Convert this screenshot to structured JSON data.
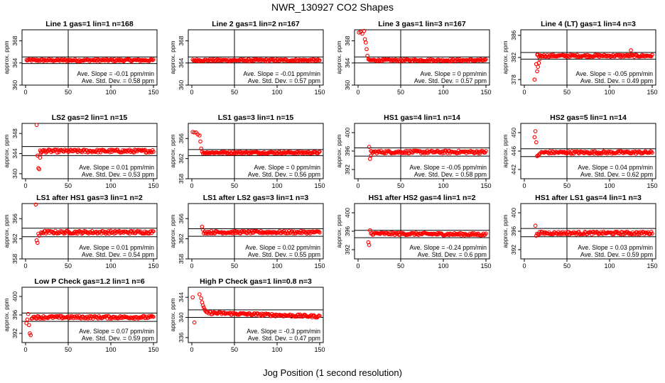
{
  "title": "NWR_130927  CO2 Shapes",
  "xlabel": "Jog Position (1 second resolution)",
  "chart_data": [
    {
      "type": "scatter",
      "title": "Line 1 gas=1 lin=1 n=168",
      "ylabel": "approx. ppm",
      "xlim": [
        0,
        150
      ],
      "ylim": [
        360,
        370
      ],
      "yticks": [
        360,
        364,
        368
      ],
      "xticks": [
        0,
        50,
        100,
        150
      ],
      "hlines": [
        363.9,
        365.1
      ],
      "vline": 50,
      "slope": "Ave. Slope = -0.01  ppm/min",
      "stddev": "Ave. Std. Dev. = 0.58  ppm",
      "points": [
        [
          1,
          364.5
        ],
        [
          150,
          364.5
        ]
      ],
      "spikes": []
    },
    {
      "type": "scatter",
      "title": "Line 2 gas=1 lin=2 n=167",
      "ylabel": "approx. ppm",
      "xlim": [
        0,
        150
      ],
      "ylim": [
        360,
        370
      ],
      "yticks": [
        360,
        364,
        368
      ],
      "xticks": [
        0,
        50,
        100,
        150
      ],
      "hlines": [
        364.0,
        365.1
      ],
      "vline": 50,
      "slope": "Ave. Slope = -0.01  ppm/min",
      "stddev": "Ave. Std. Dev. = 0.57  ppm",
      "points": [
        [
          1,
          364.5
        ],
        [
          150,
          364.5
        ]
      ],
      "spikes": []
    },
    {
      "type": "scatter",
      "title": "Line 3 gas=1 lin=3 n=167",
      "ylabel": "approx. ppm",
      "xlim": [
        0,
        150
      ],
      "ylim": [
        360,
        370
      ],
      "yticks": [
        360,
        364,
        368
      ],
      "xticks": [
        0,
        50,
        100,
        150
      ],
      "hlines": [
        364.0,
        365.1
      ],
      "vline": 50,
      "slope": "Ave. Slope = 0  ppm/min",
      "stddev": "Ave. Std. Dev. = 0.57  ppm",
      "points": [
        [
          12,
          364.5
        ],
        [
          150,
          364.5
        ]
      ],
      "spikes": [
        [
          1,
          369.5
        ],
        [
          3,
          369.6
        ],
        [
          5,
          369.3
        ],
        [
          7,
          369.8
        ],
        [
          8,
          368.3
        ],
        [
          9,
          367.7
        ],
        [
          10,
          366.5
        ],
        [
          11,
          365.3
        ]
      ]
    },
    {
      "type": "scatter",
      "title": "Line 4 (LT) gas=1 lin=4 n=3",
      "ylabel": "approx. ppm",
      "xlim": [
        0,
        150
      ],
      "ylim": [
        377,
        387
      ],
      "yticks": [
        378,
        382,
        386
      ],
      "xticks": [
        0,
        50,
        100,
        150
      ],
      "hlines": [
        381.7,
        382.9
      ],
      "vline": 50,
      "slope": "Ave. Slope = -0.05  ppm/min",
      "stddev": "Ave. Std. Dev. = 0.49  ppm",
      "points": [
        [
          15,
          382.3
        ],
        [
          150,
          382.3
        ]
      ],
      "spikes": [
        [
          12,
          378.0
        ],
        [
          15,
          379.5
        ],
        [
          16,
          380.3
        ],
        [
          17,
          381.0
        ],
        [
          14,
          380.8
        ],
        [
          18,
          381.7
        ],
        [
          125,
          383.3
        ]
      ]
    },
    {
      "type": "scatter",
      "title": "LS2 gas=2 lin=1 n=15",
      "ylabel": "approx. ppm",
      "xlim": [
        0,
        150
      ],
      "ylim": [
        339,
        350
      ],
      "yticks": [
        340,
        344,
        348
      ],
      "xticks": [
        0,
        50,
        100,
        150
      ],
      "hlines": [
        343.6,
        345.4
      ],
      "vline": 50,
      "slope": "Ave. Slope = 0.01  ppm/min",
      "stddev": "Ave. Std. Dev. = 0.53  ppm",
      "points": [
        [
          17,
          344.5
        ],
        [
          150,
          344.5
        ]
      ],
      "spikes": [
        [
          13,
          349.7
        ],
        [
          14,
          343.6
        ],
        [
          15,
          341.1
        ],
        [
          16,
          340.9
        ],
        [
          17,
          343.2
        ],
        [
          18,
          344.1
        ]
      ]
    },
    {
      "type": "scatter",
      "title": "LS1 gas=3 lin=1 n=15",
      "ylabel": "approx. ppm",
      "xlim": [
        0,
        150
      ],
      "ylim": [
        358,
        369
      ],
      "yticks": [
        358,
        362,
        366
      ],
      "xticks": [
        0,
        50,
        100,
        150
      ],
      "hlines": [
        362.6,
        363.8
      ],
      "vline": 50,
      "slope": "Ave. Slope = 0  ppm/min",
      "stddev": "Ave. Std. Dev. = 0.56  ppm",
      "points": [
        [
          12,
          363.2
        ],
        [
          150,
          363.2
        ]
      ],
      "spikes": [
        [
          1,
          367.3
        ],
        [
          3,
          367.2
        ],
        [
          5,
          367.2
        ],
        [
          7,
          366.8
        ],
        [
          9,
          366.6
        ],
        [
          10,
          365.4
        ],
        [
          11,
          364.0
        ]
      ]
    },
    {
      "type": "scatter",
      "title": "HS1 gas=4 lin=1 n=14",
      "ylabel": "approx. ppm",
      "xlim": [
        0,
        150
      ],
      "ylim": [
        390,
        402
      ],
      "yticks": [
        392,
        396,
        400
      ],
      "xticks": [
        0,
        50,
        100,
        150
      ],
      "hlines": [
        394.9,
        396.7
      ],
      "vline": 50,
      "slope": "Ave. Slope = -0.05  ppm/min",
      "stddev": "Ave. Std. Dev. = 0.58  ppm",
      "points": [
        [
          15,
          395.8
        ],
        [
          150,
          395.8
        ]
      ],
      "spikes": [
        [
          13,
          396.9
        ],
        [
          14,
          394.3
        ],
        [
          15,
          395.0
        ]
      ]
    },
    {
      "type": "scatter",
      "title": "HS2 gas=5 lin=1 n=14",
      "ylabel": "approx. ppm",
      "xlim": [
        0,
        150
      ],
      "ylim": [
        440,
        452
      ],
      "yticks": [
        442,
        446,
        450
      ],
      "xticks": [
        0,
        50,
        100,
        150
      ],
      "hlines": [
        444.8,
        446.5
      ],
      "vline": 50,
      "slope": "Ave. Slope = 0.04  ppm/min",
      "stddev": "Ave. Std. Dev. = 0.62  ppm",
      "points": [
        [
          20,
          445.7
        ],
        [
          150,
          445.7
        ]
      ],
      "spikes": [
        [
          12,
          449.0
        ],
        [
          13,
          450.3
        ],
        [
          14,
          447.9
        ],
        [
          15,
          444.9
        ],
        [
          16,
          445.0
        ],
        [
          17,
          445.2
        ],
        [
          18,
          445.4
        ]
      ]
    },
    {
      "type": "scatter",
      "title": "LS1 after HS1 gas=3 lin=1 n=2",
      "ylabel": "approx. ppm",
      "xlim": [
        0,
        150
      ],
      "ylim": [
        358,
        369
      ],
      "yticks": [
        358,
        362,
        366
      ],
      "xticks": [
        0,
        50,
        100,
        150
      ],
      "hlines": [
        362.4,
        364.1
      ],
      "vline": 50,
      "slope": "Ave. Slope = 0.01  ppm/min",
      "stddev": "Ave. Std. Dev. = 0.54  ppm",
      "points": [
        [
          18,
          363.3
        ],
        [
          150,
          363.3
        ]
      ],
      "spikes": [
        [
          12,
          368.8
        ],
        [
          13,
          361.7
        ],
        [
          14,
          361.2
        ],
        [
          15,
          363.0
        ],
        [
          16,
          362.6
        ]
      ]
    },
    {
      "type": "scatter",
      "title": "LS1 after LS2 gas=3 lin=1 n=3",
      "ylabel": "approx. ppm",
      "xlim": [
        0,
        150
      ],
      "ylim": [
        358,
        369
      ],
      "yticks": [
        358,
        362,
        366
      ],
      "xticks": [
        0,
        50,
        100,
        150
      ],
      "hlines": [
        362.5,
        364.0
      ],
      "vline": 50,
      "slope": "Ave. Slope = 0.02  ppm/min",
      "stddev": "Ave. Std. Dev. = 0.55  ppm",
      "points": [
        [
          14,
          363.3
        ],
        [
          150,
          363.3
        ]
      ],
      "spikes": [
        [
          12,
          364.4
        ],
        [
          13,
          363.8
        ]
      ]
    },
    {
      "type": "scatter",
      "title": "HS1 after HS2 gas=4 lin=1 n=2",
      "ylabel": "approx. ppm",
      "xlim": [
        0,
        150
      ],
      "ylim": [
        390,
        402
      ],
      "yticks": [
        392,
        396,
        400
      ],
      "xticks": [
        0,
        50,
        100,
        150
      ],
      "hlines": [
        394.6,
        396.2
      ],
      "vline": 50,
      "slope": "Ave. Slope = -0.24  ppm/min",
      "stddev": "Ave. Std. Dev. = 0.6  ppm",
      "points": [
        [
          15,
          395.5
        ],
        [
          150,
          395.3
        ]
      ],
      "spikes": [
        [
          12,
          393.6
        ],
        [
          13,
          393.0
        ],
        [
          14,
          396.2
        ]
      ]
    },
    {
      "type": "scatter",
      "title": "HS1 after LS1 gas=4 lin=1 n=3",
      "ylabel": "approx. ppm",
      "xlim": [
        0,
        150
      ],
      "ylim": [
        390,
        402
      ],
      "yticks": [
        392,
        396,
        400
      ],
      "xticks": [
        0,
        50,
        100,
        150
      ],
      "hlines": [
        394.8,
        396.6
      ],
      "vline": 50,
      "slope": "Ave. Slope = 0.03  ppm/min",
      "stddev": "Ave. Std. Dev. = 0.59  ppm",
      "points": [
        [
          15,
          395.6
        ],
        [
          150,
          395.6
        ]
      ],
      "spikes": [
        [
          13,
          397.2
        ],
        [
          14,
          395.0
        ]
      ]
    },
    {
      "type": "scatter",
      "title": "Low P Check gas=1.2 lin=1 n=6",
      "ylabel": "approx. ppm",
      "xlim": [
        0,
        150
      ],
      "ylim": [
        390,
        402
      ],
      "yticks": [
        392,
        396,
        400
      ],
      "xticks": [
        0,
        50,
        100,
        150
      ],
      "hlines": [
        394.6,
        396.4
      ],
      "vline": 50,
      "slope": "Ave. Slope = 0.07  ppm/min",
      "stddev": "Ave. Std. Dev. = 0.59  ppm",
      "points": [
        [
          7,
          395.5
        ],
        [
          150,
          395.5
        ]
      ],
      "spikes": [
        [
          1,
          394.2
        ],
        [
          2,
          395.0
        ],
        [
          3,
          396.2
        ],
        [
          4,
          393.8
        ],
        [
          5,
          392.0
        ],
        [
          6,
          391.6
        ]
      ]
    },
    {
      "type": "scatter",
      "title": "High P Check gas=1 lin=0.8 n=3",
      "ylabel": "approx. ppm",
      "xlim": [
        0,
        150
      ],
      "ylim": [
        335,
        346
      ],
      "yticks": [
        336,
        340,
        344
      ],
      "xticks": [
        0,
        50,
        100,
        150
      ],
      "hlines": [
        340.0,
        341.5
      ],
      "vline": 50,
      "slope": "Ave. Slope = -0.3  ppm/min",
      "stddev": "Ave. Std. Dev. = 0.47  ppm",
      "points": [
        [
          20,
          340.9
        ],
        [
          150,
          340.2
        ]
      ],
      "spikes": [
        [
          1,
          344.0
        ],
        [
          3,
          339.0
        ],
        [
          9,
          344.6
        ],
        [
          11,
          343.8
        ],
        [
          12,
          343.0
        ],
        [
          13,
          342.4
        ],
        [
          14,
          342.0
        ],
        [
          15,
          341.6
        ],
        [
          16,
          341.3
        ],
        [
          17,
          341.1
        ],
        [
          18,
          341.0
        ]
      ]
    }
  ]
}
